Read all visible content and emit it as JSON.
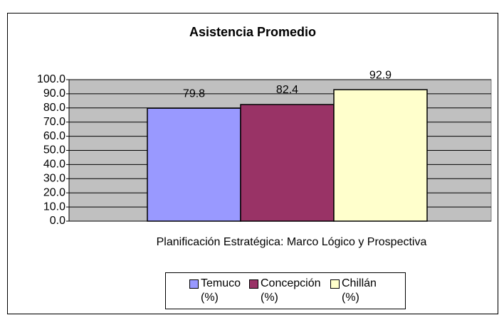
{
  "chart_data": {
    "type": "bar",
    "title": "Asistencia Promedio",
    "categories": [
      "Planificación Estratégica: Marco Lógico y Prospectiva"
    ],
    "series": [
      {
        "name": "Temuco (%)",
        "color": "#9999ff",
        "values": [
          79.8
        ]
      },
      {
        "name": "Concepción (%)",
        "color": "#993366",
        "values": [
          82.4
        ]
      },
      {
        "name": "Chillán (%)",
        "color": "#ffffcc",
        "values": [
          92.9
        ]
      }
    ],
    "ylim": [
      0,
      100
    ],
    "yticks": [
      {
        "value": 0,
        "label": "0.0"
      },
      {
        "value": 10,
        "label": "10.0"
      },
      {
        "value": 20,
        "label": "20.0"
      },
      {
        "value": 30,
        "label": "30.0"
      },
      {
        "value": 40,
        "label": "40.0"
      },
      {
        "value": 50,
        "label": "50.0"
      },
      {
        "value": 60,
        "label": "60.0"
      },
      {
        "value": 70,
        "label": "70.0"
      },
      {
        "value": 80,
        "label": "80.0"
      },
      {
        "value": 90,
        "label": "90.0"
      },
      {
        "value": 100,
        "label": "100.0"
      }
    ],
    "grid": true,
    "plot_background": "#c0c0c0",
    "legend": "bottom"
  }
}
